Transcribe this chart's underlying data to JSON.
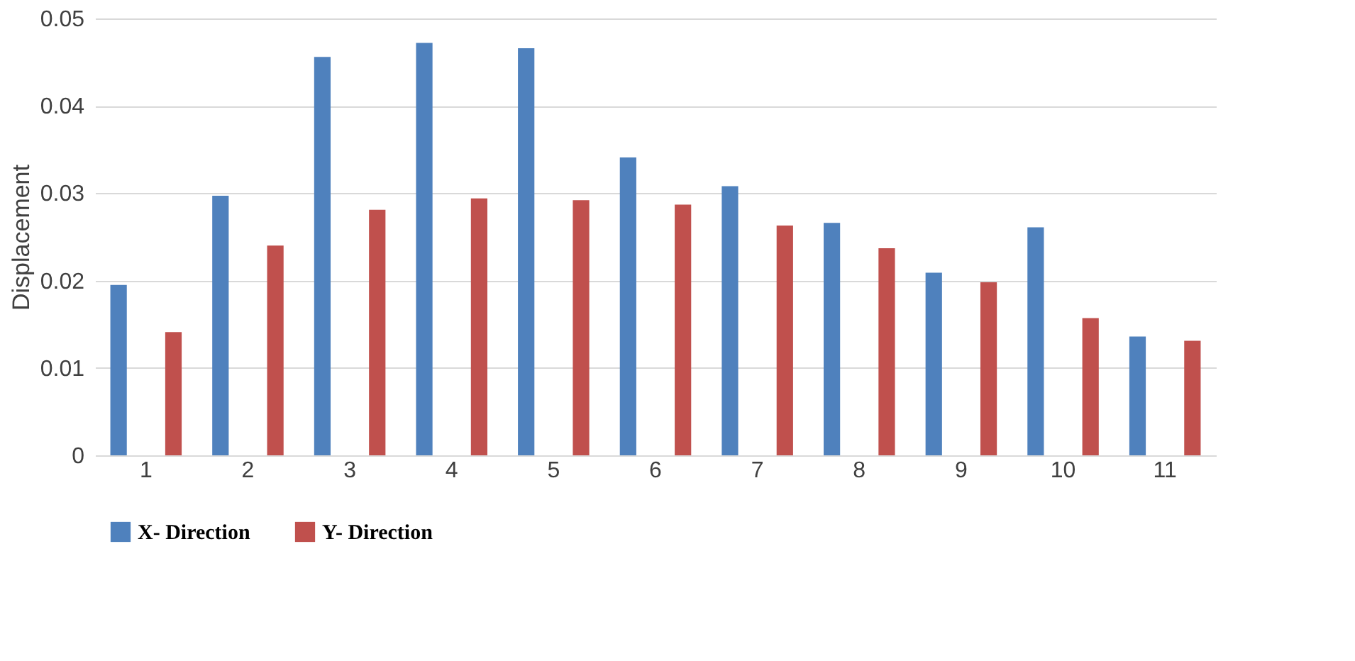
{
  "chart_data": {
    "type": "bar",
    "ylabel": "Displacement",
    "categories": [
      "1",
      "2",
      "3",
      "4",
      "5",
      "6",
      "7",
      "8",
      "9",
      "10",
      "11"
    ],
    "series": [
      {
        "name": "X- Direction",
        "color": "#4f81bd",
        "values": [
          0.0195,
          0.0297,
          0.0456,
          0.0472,
          0.0466,
          0.0341,
          0.0308,
          0.0266,
          0.0209,
          0.0261,
          0.0136
        ]
      },
      {
        "name": "Y- Direction",
        "color": "#c0504d",
        "values": [
          0.0141,
          0.024,
          0.0281,
          0.0294,
          0.0292,
          0.0287,
          0.0263,
          0.0237,
          0.0198,
          0.0157,
          0.0131
        ]
      }
    ],
    "ylim": [
      0,
      0.05
    ],
    "yticks": [
      {
        "value": 0,
        "label": "0"
      },
      0.01,
      0.02,
      0.03,
      0.04,
      0.05
    ],
    "grid": "y",
    "legend": "bottom"
  }
}
